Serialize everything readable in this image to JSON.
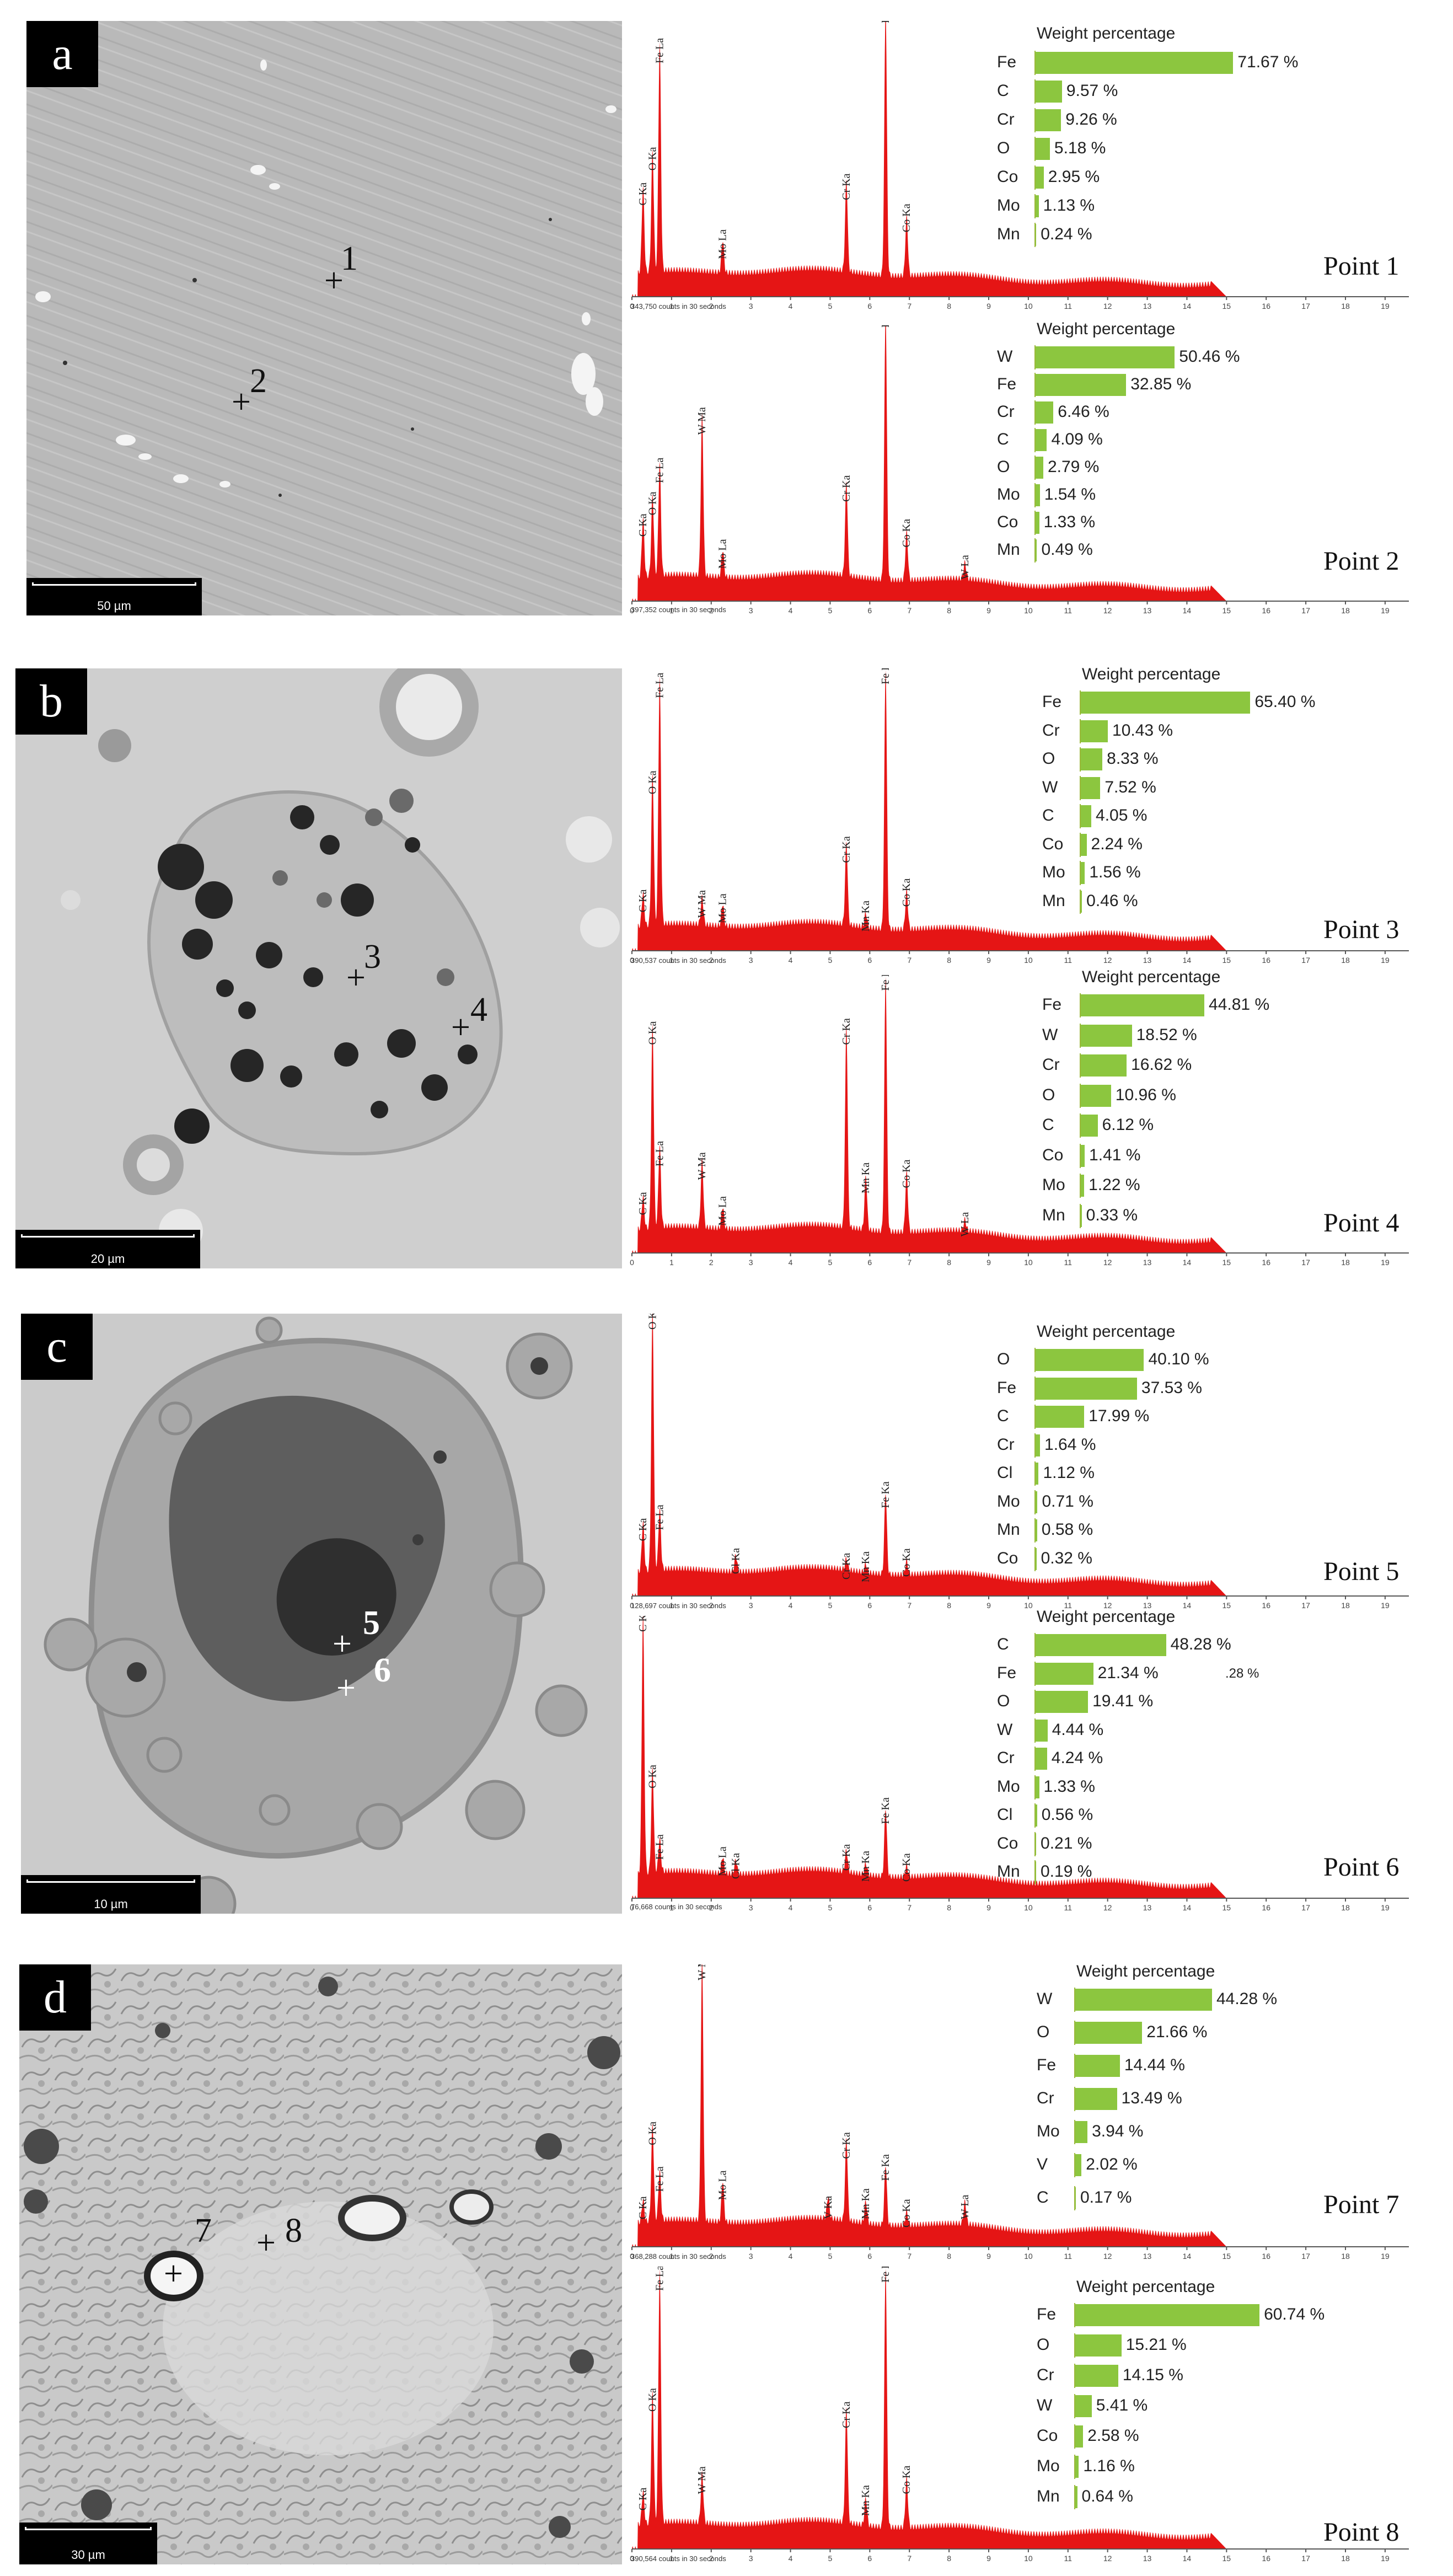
{
  "panels": [
    {
      "letter": "a",
      "scale": "50 µm",
      "markers": [
        {
          "label": "1"
        },
        {
          "label": "2"
        }
      ],
      "points": [
        {
          "name": "Point 1",
          "counts": "343,750 counts in 30 seconds",
          "title": "Weight percentage",
          "bars": [
            {
              "el": "Fe",
              "val": "71.67 %",
              "num": 71.67
            },
            {
              "el": "C",
              "val": "9.57 %",
              "num": 9.57
            },
            {
              "el": "Cr",
              "val": "9.26 %",
              "num": 9.26
            },
            {
              "el": "O",
              "val": "5.18 %",
              "num": 5.18
            },
            {
              "el": "Co",
              "val": "2.95 %",
              "num": 2.95
            },
            {
              "el": "Mo",
              "val": "1.13 %",
              "num": 1.13
            },
            {
              "el": "Mn",
              "val": "0.24 %",
              "num": 0.24
            }
          ],
          "peaks": [
            {
              "label": "C Ka",
              "kev": 0.28,
              "h": 0.32
            },
            {
              "label": "O Ka",
              "kev": 0.52,
              "h": 0.45
            },
            {
              "label": "Fe La",
              "kev": 0.7,
              "h": 0.85
            },
            {
              "label": "Mo La",
              "kev": 2.29,
              "h": 0.12
            },
            {
              "label": "Cr Ka",
              "kev": 5.41,
              "h": 0.34
            },
            {
              "label": "Fe Ka",
              "kev": 6.4,
              "h": 1.0
            },
            {
              "label": "Co Ka",
              "kev": 6.93,
              "h": 0.22
            }
          ]
        },
        {
          "name": "Point 2",
          "counts": "397,352 counts in 30 seconds",
          "title": "Weight percentage",
          "bars": [
            {
              "el": "W",
              "val": "50.46 %",
              "num": 50.46
            },
            {
              "el": "Fe",
              "val": "32.85 %",
              "num": 32.85
            },
            {
              "el": "Cr",
              "val": "6.46 %",
              "num": 6.46
            },
            {
              "el": "C",
              "val": "4.09 %",
              "num": 4.09
            },
            {
              "el": "O",
              "val": "2.79 %",
              "num": 2.79
            },
            {
              "el": "Mo",
              "val": "1.54 %",
              "num": 1.54
            },
            {
              "el": "Co",
              "val": "1.33 %",
              "num": 1.33
            },
            {
              "el": "Mn",
              "val": "0.49 %",
              "num": 0.49
            }
          ],
          "peaks": [
            {
              "label": "C Ka",
              "kev": 0.28,
              "h": 0.22
            },
            {
              "label": "O Ka",
              "kev": 0.52,
              "h": 0.3
            },
            {
              "label": "Fe La",
              "kev": 0.7,
              "h": 0.42
            },
            {
              "label": "W Ma",
              "kev": 1.77,
              "h": 0.6
            },
            {
              "label": "Mo La",
              "kev": 2.29,
              "h": 0.1
            },
            {
              "label": "Cr Ka",
              "kev": 5.41,
              "h": 0.35
            },
            {
              "label": "Fe Ka",
              "kev": 6.4,
              "h": 1.0
            },
            {
              "label": "Co Ka",
              "kev": 6.93,
              "h": 0.18
            },
            {
              "label": "W La",
              "kev": 8.4,
              "h": 0.06
            }
          ]
        }
      ]
    },
    {
      "letter": "b",
      "scale": "20 µm",
      "markers": [
        {
          "label": "3"
        },
        {
          "label": "4"
        }
      ],
      "points": [
        {
          "name": "Point 3",
          "counts": "390,537 counts in 30 seconds",
          "title": "Weight percentage",
          "bars": [
            {
              "el": "Fe",
              "val": "65.40 %",
              "num": 65.4
            },
            {
              "el": "Cr",
              "val": "10.43 %",
              "num": 10.43
            },
            {
              "el": "O",
              "val": "8.33 %",
              "num": 8.33
            },
            {
              "el": "W",
              "val": "7.52 %",
              "num": 7.52
            },
            {
              "el": "C",
              "val": "4.05 %",
              "num": 4.05
            },
            {
              "el": "Co",
              "val": "2.24 %",
              "num": 2.24
            },
            {
              "el": "Mo",
              "val": "1.56 %",
              "num": 1.56
            },
            {
              "el": "Mn",
              "val": "0.46 %",
              "num": 0.46
            }
          ],
          "peaks": [
            {
              "label": "C Ka",
              "kev": 0.28,
              "h": 0.12
            },
            {
              "label": "O Ka",
              "kev": 0.52,
              "h": 0.55
            },
            {
              "label": "Fe La",
              "kev": 0.7,
              "h": 0.9
            },
            {
              "label": "W Ma",
              "kev": 1.77,
              "h": 0.1
            },
            {
              "label": "Mo La",
              "kev": 2.29,
              "h": 0.08
            },
            {
              "label": "Cr Ka",
              "kev": 5.41,
              "h": 0.3
            },
            {
              "label": "Mn Ka",
              "kev": 5.9,
              "h": 0.05
            },
            {
              "label": "Fe Ka",
              "kev": 6.4,
              "h": 0.95
            },
            {
              "label": "Co Ka",
              "kev": 6.93,
              "h": 0.14
            }
          ]
        },
        {
          "name": "Point 4",
          "counts": "",
          "title": "Weight percentage",
          "bars": [
            {
              "el": "Fe",
              "val": "44.81 %",
              "num": 44.81
            },
            {
              "el": "W",
              "val": "18.52 %",
              "num": 18.52
            },
            {
              "el": "Cr",
              "val": "16.62 %",
              "num": 16.62
            },
            {
              "el": "O",
              "val": "10.96 %",
              "num": 10.96
            },
            {
              "el": "C",
              "val": "6.12 %",
              "num": 6.12
            },
            {
              "el": "Co",
              "val": "1.41 %",
              "num": 1.41
            },
            {
              "el": "Mo",
              "val": "1.22 %",
              "num": 1.22
            },
            {
              "el": "Mn",
              "val": "0.33 %",
              "num": 0.33
            }
          ],
          "peaks": [
            {
              "label": "C Ka",
              "kev": 0.28,
              "h": 0.12
            },
            {
              "label": "O Ka",
              "kev": 0.52,
              "h": 0.75
            },
            {
              "label": "Fe La",
              "kev": 0.7,
              "h": 0.3
            },
            {
              "label": "W Ma",
              "kev": 1.77,
              "h": 0.25
            },
            {
              "label": "Mo La",
              "kev": 2.29,
              "h": 0.08
            },
            {
              "label": "Cr Ka",
              "kev": 5.41,
              "h": 0.75
            },
            {
              "label": "Mn Ka",
              "kev": 5.9,
              "h": 0.2
            },
            {
              "label": "Fe Ka",
              "kev": 6.4,
              "h": 0.95
            },
            {
              "label": "Co Ka",
              "kev": 6.93,
              "h": 0.22
            },
            {
              "label": "W La",
              "kev": 8.4,
              "h": 0.04
            }
          ]
        }
      ]
    },
    {
      "letter": "c",
      "scale": "10 µm",
      "markers": [
        {
          "label": "5"
        },
        {
          "label": "6"
        }
      ],
      "points": [
        {
          "name": "Point 5",
          "counts": "128,697 counts in 30 seconds",
          "title": "Weight percentage",
          "bars": [
            {
              "el": "O",
              "val": "40.10 %",
              "num": 40.1
            },
            {
              "el": "Fe",
              "val": "37.53 %",
              "num": 37.53
            },
            {
              "el": "C",
              "val": "17.99 %",
              "num": 17.99
            },
            {
              "el": "Cr",
              "val": "1.64 %",
              "num": 1.64
            },
            {
              "el": "Cl",
              "val": "1.12 %",
              "num": 1.12
            },
            {
              "el": "Mo",
              "val": "0.71 %",
              "num": 0.71
            },
            {
              "el": "Mn",
              "val": "0.58 %",
              "num": 0.58
            },
            {
              "el": "Co",
              "val": "0.32 %",
              "num": 0.32
            }
          ],
          "peaks": [
            {
              "label": "C Ka",
              "kev": 0.28,
              "h": 0.18
            },
            {
              "label": "O Ka",
              "kev": 0.52,
              "h": 0.95
            },
            {
              "label": "Fe La",
              "kev": 0.7,
              "h": 0.22
            },
            {
              "label": "Cl Ka",
              "kev": 2.62,
              "h": 0.06
            },
            {
              "label": "Cr Ka",
              "kev": 5.41,
              "h": 0.04
            },
            {
              "label": "Mn Ka",
              "kev": 5.9,
              "h": 0.03
            },
            {
              "label": "Fe Ka",
              "kev": 6.4,
              "h": 0.3
            },
            {
              "label": "Co Ka",
              "kev": 6.93,
              "h": 0.05
            }
          ]
        },
        {
          "name": "Point 6",
          "counts": "76,668 counts in 30 seconds",
          "title": "Weight percentage",
          "stray": ".28 %",
          "bars": [
            {
              "el": "C",
              "val": "48.28 %",
              "num": 48.28
            },
            {
              "el": "Fe",
              "val": "21.34 %",
              "num": 21.34
            },
            {
              "el": "O",
              "val": "19.41 %",
              "num": 19.41
            },
            {
              "el": "W",
              "val": "4.44 %",
              "num": 4.44
            },
            {
              "el": "Cr",
              "val": "4.24 %",
              "num": 4.24
            },
            {
              "el": "Mo",
              "val": "1.33 %",
              "num": 1.33
            },
            {
              "el": "Cl",
              "val": "0.56 %",
              "num": 0.56
            },
            {
              "el": "Co",
              "val": "0.21 %",
              "num": 0.21
            },
            {
              "el": "Mn",
              "val": "0.19 %",
              "num": 0.19
            }
          ],
          "peaks": [
            {
              "label": "C Ka",
              "kev": 0.28,
              "h": 0.95
            },
            {
              "label": "O Ka",
              "kev": 0.52,
              "h": 0.38
            },
            {
              "label": "Fe La",
              "kev": 0.7,
              "h": 0.12
            },
            {
              "label": "Mo La",
              "kev": 2.29,
              "h": 0.06
            },
            {
              "label": "Cl Ka",
              "kev": 2.62,
              "h": 0.05
            },
            {
              "label": "Cr Ka",
              "kev": 5.41,
              "h": 0.08
            },
            {
              "label": "Mn Ka",
              "kev": 5.9,
              "h": 0.04
            },
            {
              "label": "Fe Ka",
              "kev": 6.4,
              "h": 0.25
            },
            {
              "label": "Co Ka",
              "kev": 6.93,
              "h": 0.04
            }
          ]
        }
      ]
    },
    {
      "letter": "d",
      "scale": "30 µm",
      "markers": [
        {
          "label": "7"
        },
        {
          "label": "8"
        }
      ],
      "points": [
        {
          "name": "Point 7",
          "counts": "368,288 counts in 30 seconds",
          "title": "Weight percentage",
          "bars": [
            {
              "el": "W",
              "val": "44.28 %",
              "num": 44.28
            },
            {
              "el": "O",
              "val": "21.66 %",
              "num": 21.66
            },
            {
              "el": "Fe",
              "val": "14.44 %",
              "num": 14.44
            },
            {
              "el": "Cr",
              "val": "13.49 %",
              "num": 13.49
            },
            {
              "el": "Mo",
              "val": "3.94 %",
              "num": 3.94
            },
            {
              "el": "V",
              "val": "2.02 %",
              "num": 2.02
            },
            {
              "el": "C",
              "val": "0.17 %",
              "num": 0.17
            }
          ],
          "peaks": [
            {
              "label": "C Ka",
              "kev": 0.28,
              "h": 0.08
            },
            {
              "label": "O Ka",
              "kev": 0.52,
              "h": 0.35
            },
            {
              "label": "Fe La",
              "kev": 0.7,
              "h": 0.18
            },
            {
              "label": "W Ma",
              "kev": 1.77,
              "h": 0.95
            },
            {
              "label": "Mo La",
              "kev": 2.29,
              "h": 0.15
            },
            {
              "label": "V Ka",
              "kev": 4.95,
              "h": 0.08
            },
            {
              "label": "Cr Ka",
              "kev": 5.41,
              "h": 0.3
            },
            {
              "label": "Mn Ka",
              "kev": 5.9,
              "h": 0.08
            },
            {
              "label": "Fe Ka",
              "kev": 6.4,
              "h": 0.22
            },
            {
              "label": "Co Ka",
              "kev": 6.93,
              "h": 0.05
            },
            {
              "label": "W La",
              "kev": 8.4,
              "h": 0.08
            }
          ]
        },
        {
          "name": "Point 8",
          "counts": "390,564 counts in 30 seconds",
          "title": "Weight percentage",
          "bars": [
            {
              "el": "Fe",
              "val": "60.74 %",
              "num": 60.74
            },
            {
              "el": "O",
              "val": "15.21 %",
              "num": 15.21
            },
            {
              "el": "Cr",
              "val": "14.15 %",
              "num": 14.15
            },
            {
              "el": "W",
              "val": "5.41 %",
              "num": 5.41
            },
            {
              "el": "Co",
              "val": "2.58 %",
              "num": 2.58
            },
            {
              "el": "Mo",
              "val": "1.16 %",
              "num": 1.16
            },
            {
              "el": "Mn",
              "val": "0.64 %",
              "num": 0.64
            }
          ],
          "peaks": [
            {
              "label": "C Ka",
              "kev": 0.28,
              "h": 0.12
            },
            {
              "label": "O Ka",
              "kev": 0.52,
              "h": 0.48
            },
            {
              "label": "Fe La",
              "kev": 0.7,
              "h": 0.92
            },
            {
              "label": "W Ma",
              "kev": 1.77,
              "h": 0.18
            },
            {
              "label": "Cr Ka",
              "kev": 5.41,
              "h": 0.42
            },
            {
              "label": "Mn Ka",
              "kev": 5.9,
              "h": 0.1
            },
            {
              "label": "Fe Ka",
              "kev": 6.4,
              "h": 0.95
            },
            {
              "label": "Co Ka",
              "kev": 6.93,
              "h": 0.18
            }
          ]
        }
      ]
    }
  ],
  "axis_ticks": [
    "0",
    "1",
    "2",
    "3",
    "4",
    "5",
    "6",
    "7",
    "8",
    "9",
    "10",
    "11",
    "12",
    "13",
    "14",
    "15",
    "16",
    "17",
    "18",
    "19"
  ],
  "colors": {
    "spectrum": "#e51515",
    "bar": "#8cc63f"
  }
}
